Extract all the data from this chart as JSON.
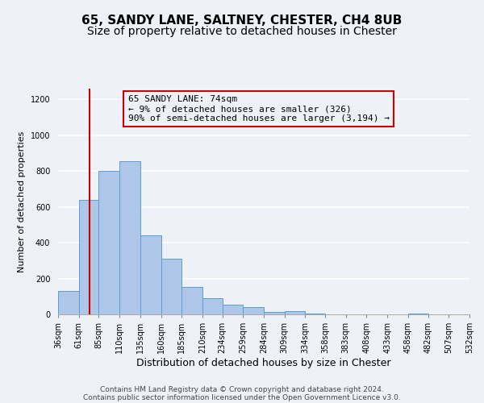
{
  "title": "65, SANDY LANE, SALTNEY, CHESTER, CH4 8UB",
  "subtitle": "Size of property relative to detached houses in Chester",
  "xlabel": "Distribution of detached houses by size in Chester",
  "ylabel": "Number of detached properties",
  "bar_edges": [
    36,
    61,
    85,
    110,
    135,
    160,
    185,
    210,
    234,
    259,
    284,
    309,
    334,
    358,
    383,
    408,
    433,
    458,
    482,
    507,
    532
  ],
  "bar_heights": [
    130,
    640,
    800,
    855,
    440,
    310,
    155,
    92,
    52,
    40,
    15,
    20,
    5,
    0,
    0,
    0,
    0,
    5,
    0,
    0,
    0
  ],
  "bar_color": "#aec6e8",
  "bar_edge_color": "#5a9fd4",
  "vline_x": 74,
  "vline_color": "#cc0000",
  "annotation_line1": "65 SANDY LANE: 74sqm",
  "annotation_line2": "← 9% of detached houses are smaller (326)",
  "annotation_line3": "90% of semi-detached houses are larger (3,194) →",
  "box_edge_color": "#cc0000",
  "ylim": [
    0,
    1260
  ],
  "yticks": [
    0,
    200,
    400,
    600,
    800,
    1000,
    1200
  ],
  "tick_labels": [
    "36sqm",
    "61sqm",
    "85sqm",
    "110sqm",
    "135sqm",
    "160sqm",
    "185sqm",
    "210sqm",
    "234sqm",
    "259sqm",
    "284sqm",
    "309sqm",
    "334sqm",
    "358sqm",
    "383sqm",
    "408sqm",
    "433sqm",
    "458sqm",
    "482sqm",
    "507sqm",
    "532sqm"
  ],
  "footer_line1": "Contains HM Land Registry data © Crown copyright and database right 2024.",
  "footer_line2": "Contains public sector information licensed under the Open Government Licence v3.0.",
  "background_color": "#eef2f8",
  "grid_color": "#ffffff",
  "title_fontsize": 11,
  "subtitle_fontsize": 10,
  "xlabel_fontsize": 9,
  "ylabel_fontsize": 8,
  "tick_fontsize": 7,
  "annot_fontsize": 8,
  "footer_fontsize": 6.5
}
